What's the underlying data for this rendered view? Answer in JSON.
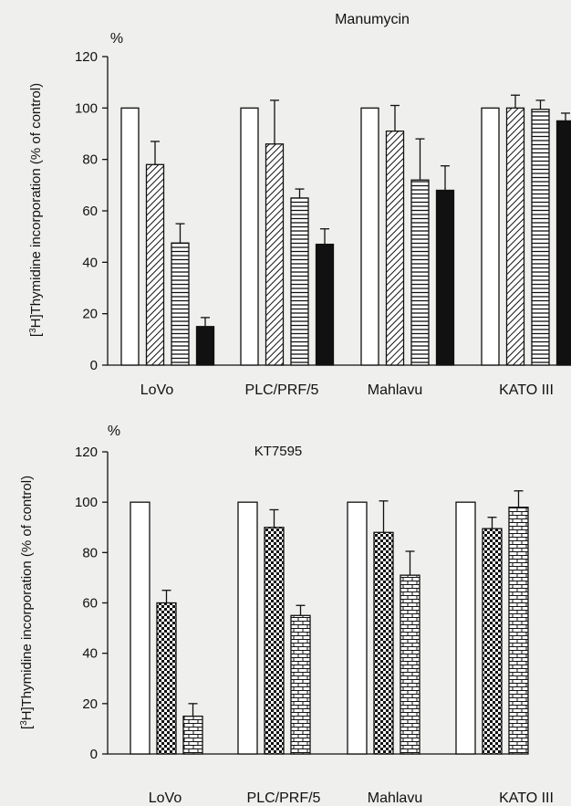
{
  "chart_data": [
    {
      "type": "bar",
      "title": "Manumycin",
      "unit_label": "%",
      "ylabel": "[3H]Thymidine incorporation (% of control)",
      "ylim": [
        0,
        120
      ],
      "yticks": [
        0,
        20,
        40,
        60,
        80,
        100,
        120
      ],
      "grid": false,
      "categories": [
        "LoVo",
        "PLC/PRF/5",
        "Mahlavu",
        "KATO III"
      ],
      "series": [
        {
          "pattern": "open",
          "values": [
            100,
            100,
            100,
            100
          ],
          "errors": [
            0,
            0,
            0,
            0
          ]
        },
        {
          "pattern": "diagonal-hatch",
          "values": [
            78,
            86,
            91,
            100
          ],
          "errors": [
            9,
            17,
            10,
            5
          ]
        },
        {
          "pattern": "horizontal-lines",
          "values": [
            47.5,
            65,
            72,
            99.5
          ],
          "errors": [
            7.5,
            3.5,
            16,
            3.5
          ]
        },
        {
          "pattern": "solid-black",
          "values": [
            15,
            47,
            68,
            95
          ],
          "errors": [
            3.5,
            6,
            9.5,
            3
          ]
        }
      ]
    },
    {
      "type": "bar",
      "title": "KT7595",
      "unit_label": "%",
      "ylabel": "[3H]Thymidine incorporation (% of control)",
      "ylim": [
        0,
        120
      ],
      "yticks": [
        0,
        20,
        40,
        60,
        80,
        100,
        120
      ],
      "grid": false,
      "categories": [
        "LoVo",
        "PLC/PRF/5",
        "Mahlavu",
        "KATO III"
      ],
      "series": [
        {
          "pattern": "open",
          "values": [
            100,
            100,
            100,
            100
          ],
          "errors": [
            0,
            0,
            0,
            0
          ]
        },
        {
          "pattern": "checkered",
          "values": [
            60,
            90,
            88,
            89.5
          ],
          "errors": [
            5,
            7,
            12.5,
            4.5
          ]
        },
        {
          "pattern": "brick",
          "values": [
            15,
            55,
            71,
            98
          ],
          "errors": [
            5,
            4,
            9.5,
            6.5
          ]
        }
      ]
    }
  ],
  "colors": {
    "background": "#efefed",
    "ink": "#111111",
    "open_bar_fill": "#ffffff",
    "solid_bar_fill": "#111111"
  }
}
